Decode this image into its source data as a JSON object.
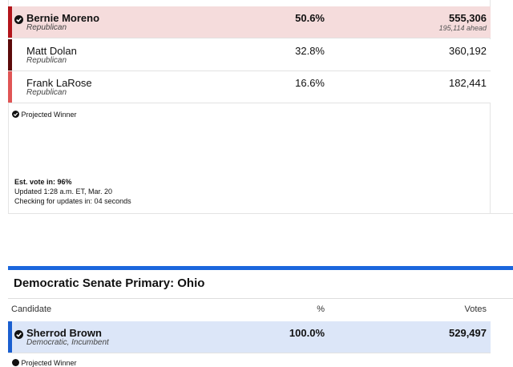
{
  "republican": {
    "candidates": [
      {
        "name": "Bernie Moreno",
        "party": "Republican",
        "percent": "50.6%",
        "votes": "555,306",
        "lead": "195,114 ahead"
      },
      {
        "name": "Matt Dolan",
        "party": "Republican",
        "percent": "32.8%",
        "votes": "360,192"
      },
      {
        "name": "Frank LaRose",
        "party": "Republican",
        "percent": "16.6%",
        "votes": "182,441"
      }
    ],
    "projected_winner": "Projected Winner",
    "est_vote": "Est. vote in: 96%",
    "updated": "Updated 1:28 a.m. ET, Mar. 20",
    "checking": "Checking for updates in: 04 seconds"
  },
  "democratic": {
    "title": "Democratic Senate Primary: Ohio",
    "headers": [
      "Candidate",
      "%",
      "Votes"
    ],
    "candidates": [
      {
        "name": "Sherrod Brown",
        "party": "Democratic, Incumbent",
        "percent": "100.0%",
        "votes": "529,497"
      }
    ],
    "projected_winner": "Projected Winner"
  }
}
